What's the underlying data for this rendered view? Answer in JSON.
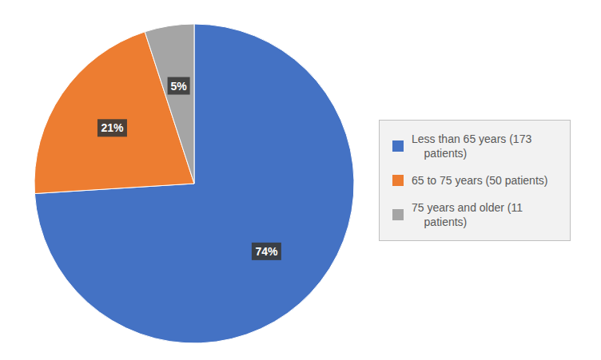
{
  "chart_data": {
    "type": "pie",
    "categories": [
      "Less than 65 years (173\n    patients)",
      "65 to 75 years (50 patients)",
      "75 years and older (11\n    patients)"
    ],
    "values": [
      74,
      21,
      5
    ],
    "value_labels": [
      "74%",
      "21%",
      "5%"
    ],
    "colors": [
      "#4472C4",
      "#ED7D31",
      "#A5A5A5"
    ],
    "data_labels": true,
    "legend": "right"
  }
}
